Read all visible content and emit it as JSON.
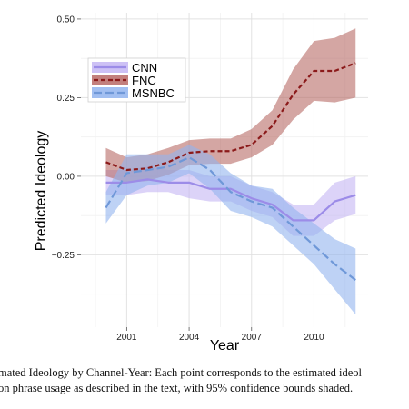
{
  "chart_data": {
    "type": "line",
    "xlabel": "Year",
    "ylabel": "Predicted Ideology",
    "xlim": [
      1998.8,
      2012.6
    ],
    "ylim": [
      -0.48,
      0.52
    ],
    "xticks": [
      2001,
      2004,
      2007,
      2010
    ],
    "xtick_labels": [
      "2001",
      "2004",
      "2007",
      "2010"
    ],
    "yticks": [
      0.5,
      0.25,
      0,
      -0.25
    ],
    "ytick_labels": [
      "0.50",
      "0.25",
      "0.00",
      "−0.25"
    ],
    "grid": true,
    "legend_position": "top-left",
    "x": [
      2000,
      2001,
      2002,
      2003,
      2004,
      2005,
      2006,
      2007,
      2008,
      2009,
      2010,
      2011,
      2012
    ],
    "series": [
      {
        "name": "CNN",
        "line_color": "#9c8ce8",
        "band_color": "#c4b6f3",
        "dash": "solid",
        "values": [
          -0.02,
          -0.02,
          -0.01,
          -0.02,
          -0.02,
          -0.04,
          -0.04,
          -0.07,
          -0.09,
          -0.14,
          -0.14,
          -0.08,
          -0.06
        ],
        "lower": [
          -0.06,
          -0.06,
          -0.05,
          -0.05,
          -0.07,
          -0.08,
          -0.08,
          -0.11,
          -0.13,
          -0.19,
          -0.19,
          -0.14,
          -0.12
        ],
        "upper": [
          0.02,
          0.02,
          0.03,
          0.02,
          0.02,
          0.0,
          0.0,
          -0.03,
          -0.05,
          -0.09,
          -0.09,
          -0.02,
          0.0
        ]
      },
      {
        "name": "FNC",
        "line_color": "#8b1a1a",
        "band_color": "#b86a66",
        "dash": "dash",
        "values": [
          0.045,
          0.02,
          0.025,
          0.045,
          0.075,
          0.08,
          0.08,
          0.1,
          0.16,
          0.26,
          0.335,
          0.335,
          0.36
        ],
        "lower": [
          0.0,
          -0.02,
          -0.015,
          0.005,
          0.035,
          0.04,
          0.04,
          0.06,
          0.1,
          0.18,
          0.24,
          0.235,
          0.25
        ],
        "upper": [
          0.09,
          0.06,
          0.07,
          0.09,
          0.115,
          0.12,
          0.12,
          0.15,
          0.21,
          0.34,
          0.43,
          0.44,
          0.47
        ]
      },
      {
        "name": "MSNBC",
        "line_color": "#6f98d8",
        "band_color": "#92b4ee",
        "dash": "longdash",
        "values": [
          -0.1,
          0.01,
          0.02,
          0.03,
          0.06,
          0.02,
          -0.05,
          -0.08,
          -0.1,
          -0.16,
          -0.22,
          -0.28,
          -0.33
        ],
        "lower": [
          -0.15,
          -0.06,
          -0.03,
          -0.02,
          0.01,
          -0.04,
          -0.11,
          -0.13,
          -0.16,
          -0.22,
          -0.28,
          -0.36,
          -0.44
        ],
        "upper": [
          -0.05,
          0.07,
          0.07,
          0.07,
          0.1,
          0.07,
          0.01,
          -0.03,
          -0.04,
          -0.1,
          -0.15,
          -0.2,
          -0.23
        ]
      }
    ]
  },
  "caption": {
    "line1": "mated Ideology by Channel-Year:  Each point corresponds to the estimated ideol",
    "line2": "on phrase usage as described in the text, with 95% confidence bounds shaded."
  }
}
